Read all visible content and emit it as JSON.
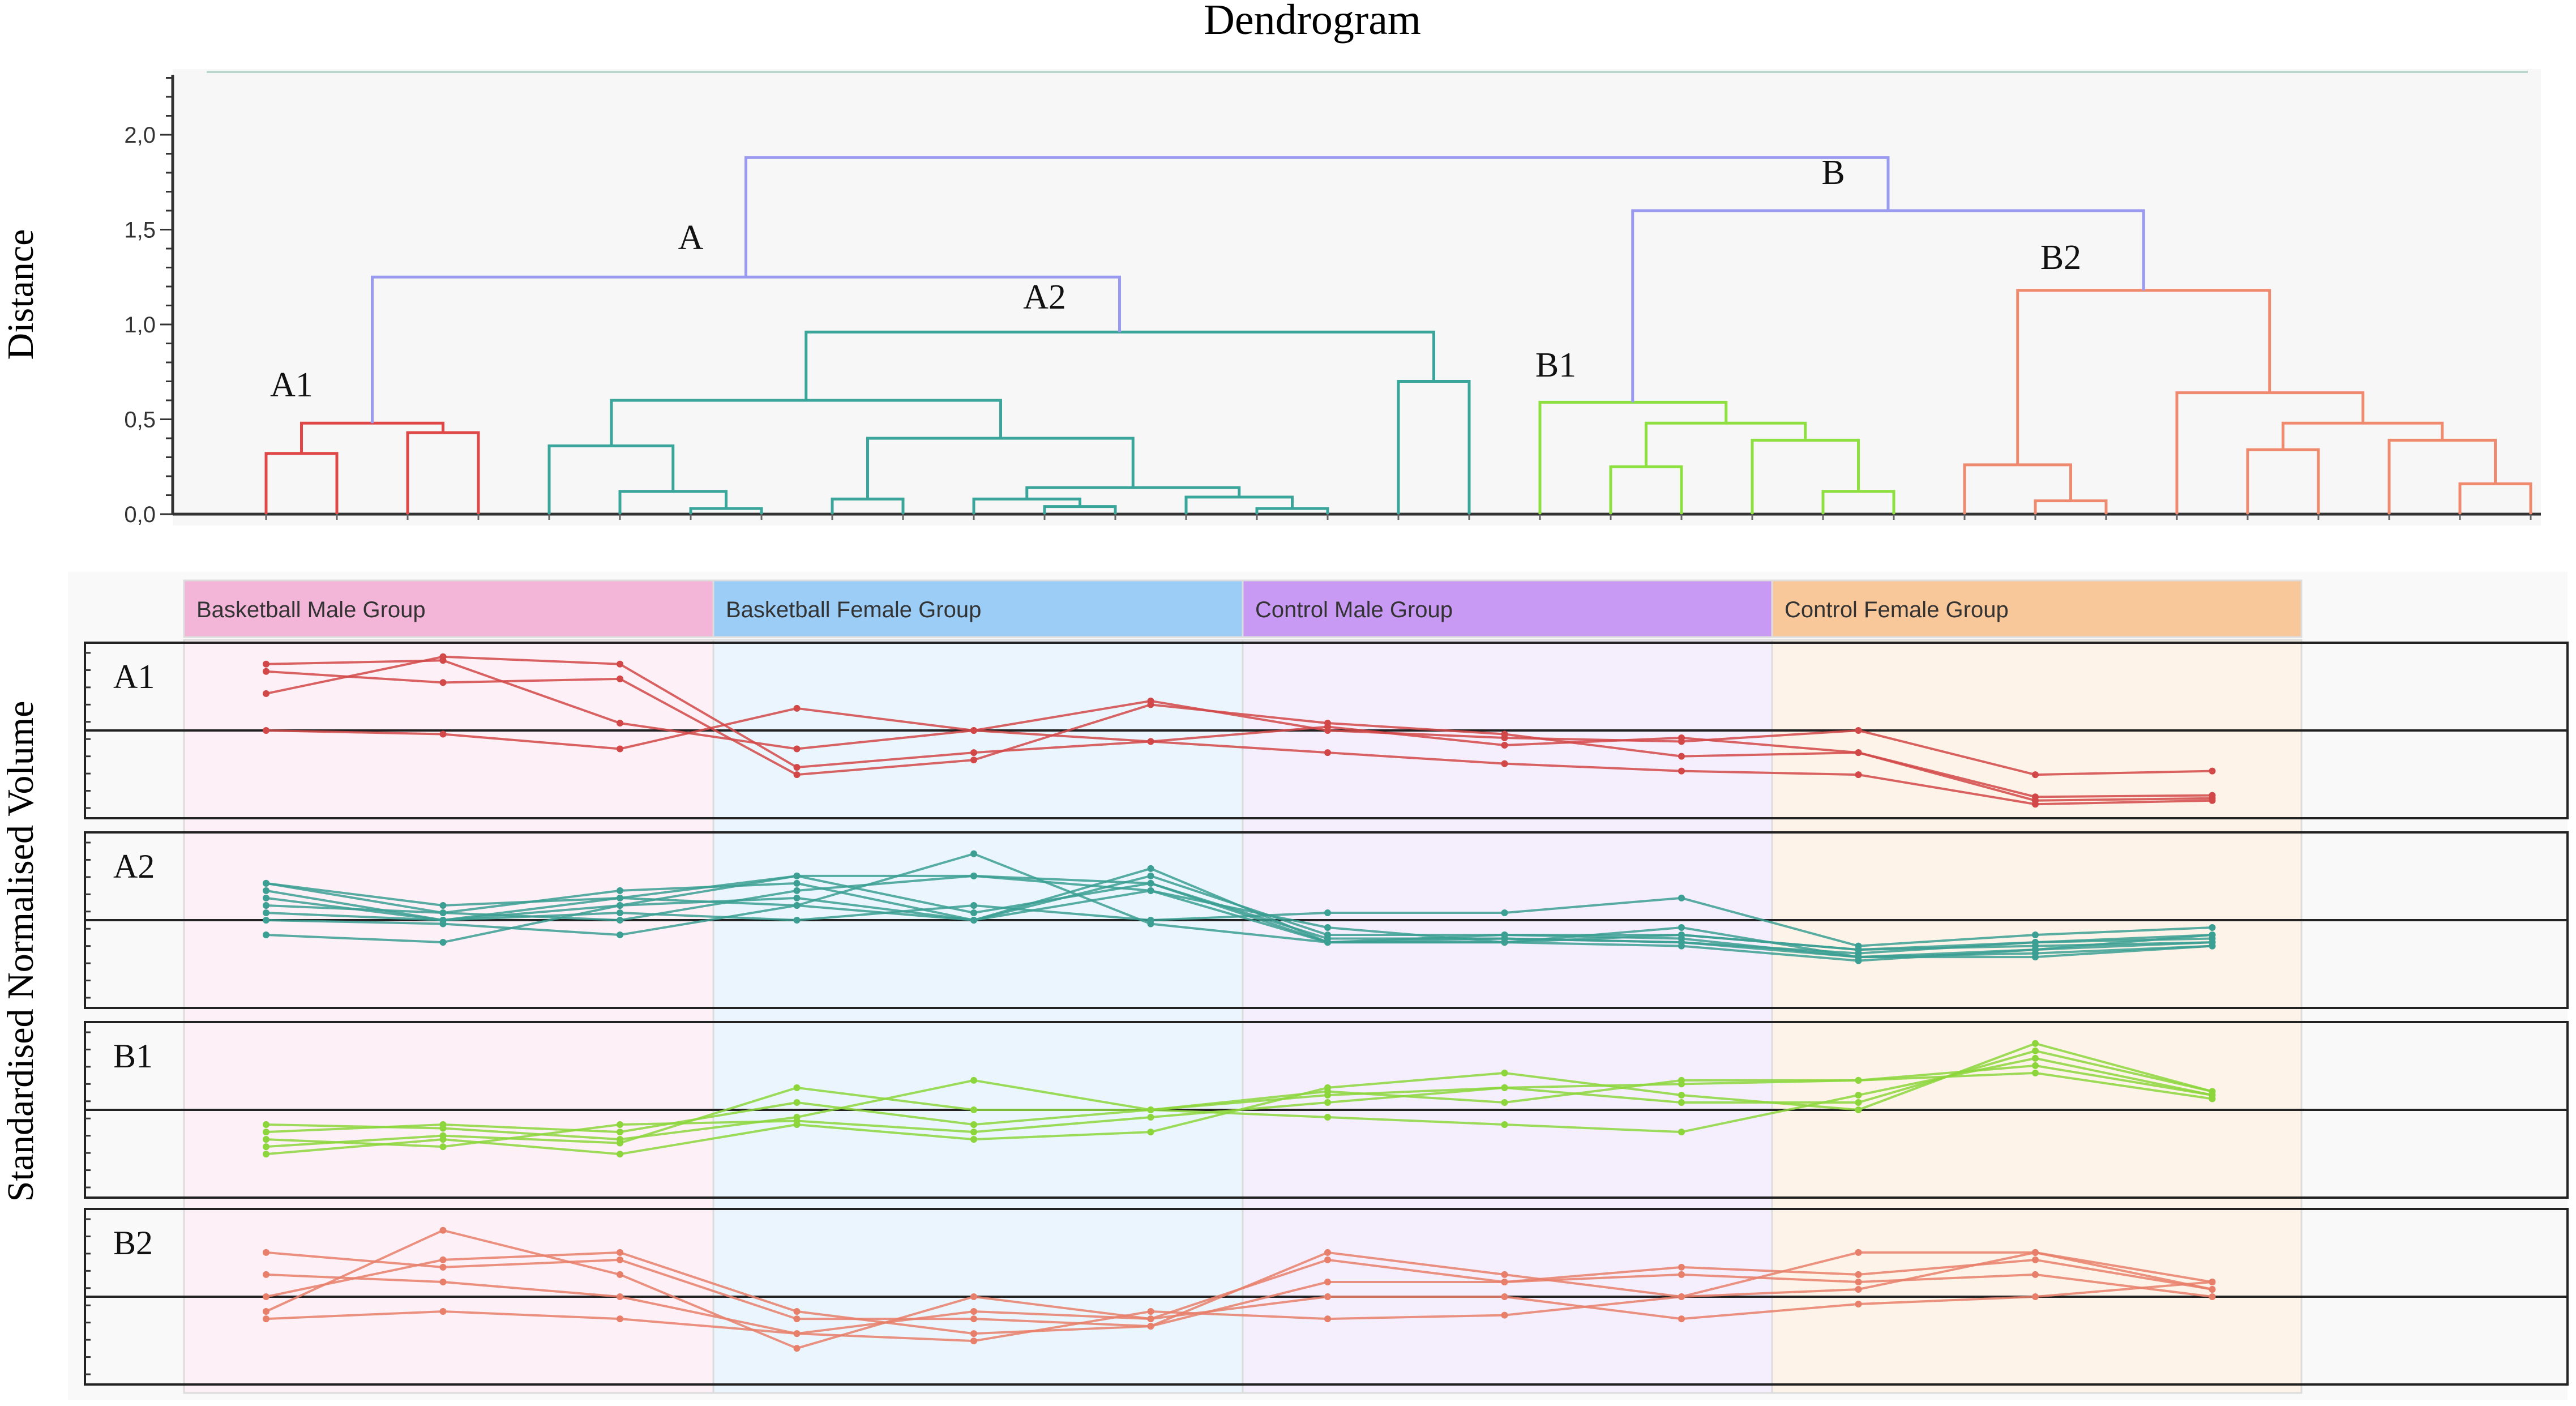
{
  "chart_data": [
    {
      "type": "dendrogram",
      "title": "Dendrogram",
      "ylabel": "Distance",
      "ylim": [
        0,
        2.3
      ],
      "yticks": [
        "0,0",
        "0,5",
        "1,0",
        "1,5",
        "2,0"
      ],
      "grid": false,
      "clusters": [
        {
          "label": "A",
          "height": 1.88,
          "color": "#9a9af0"
        },
        {
          "label": "B",
          "height": 1.88,
          "color": "#9a9af0"
        },
        {
          "label": "A1",
          "height": 1.25,
          "color": "#e04848"
        },
        {
          "label": "A2",
          "height": 1.25,
          "color": "#3aa59a"
        },
        {
          "label": "B1",
          "height": 1.6,
          "color": "#8ee040"
        },
        {
          "label": "B2",
          "height": 1.6,
          "color": "#f08a6e"
        }
      ],
      "links": [
        {
          "cluster": "A1",
          "height": 0.32,
          "children": [
            1,
            2
          ]
        },
        {
          "cluster": "A1",
          "height": 0.43,
          "children": [
            3,
            4
          ]
        },
        {
          "cluster": "A1",
          "height": 0.48,
          "children": [
            1.5,
            3.5
          ]
        },
        {
          "cluster": "A2",
          "height": 0.03,
          "children": [
            7,
            8
          ]
        },
        {
          "cluster": "A2",
          "height": 0.12,
          "children": [
            6,
            7.5
          ]
        },
        {
          "cluster": "A2",
          "height": 0.36,
          "children": [
            5,
            6.75
          ]
        },
        {
          "cluster": "A2",
          "height": 0.08,
          "children": [
            9,
            10
          ]
        },
        {
          "cluster": "A2",
          "height": 0.04,
          "children": [
            12,
            13
          ]
        },
        {
          "cluster": "A2",
          "height": 0.08,
          "children": [
            11,
            12.5
          ]
        },
        {
          "cluster": "A2",
          "height": 0.03,
          "children": [
            15,
            16
          ]
        },
        {
          "cluster": "A2",
          "height": 0.09,
          "children": [
            14,
            15.5
          ]
        },
        {
          "cluster": "A2",
          "height": 0.14,
          "children": [
            11.75,
            14.75
          ]
        },
        {
          "cluster": "A2",
          "height": 0.4,
          "children": [
            9.5,
            13.25
          ]
        },
        {
          "cluster": "A2",
          "height": 0.6,
          "children": [
            5.88,
            11.38
          ]
        },
        {
          "cluster": "A2",
          "height": 0.7,
          "children": [
            17,
            18
          ]
        },
        {
          "cluster": "A2",
          "height": 0.96,
          "children": [
            8.63,
            17.5
          ]
        },
        {
          "cluster": "A",
          "height": 1.25,
          "children": [
            2.5,
            13.06
          ]
        },
        {
          "cluster": "B1",
          "height": 0.25,
          "children": [
            20,
            21
          ]
        },
        {
          "cluster": "B1",
          "height": 0.12,
          "children": [
            23,
            24
          ]
        },
        {
          "cluster": "B1",
          "height": 0.39,
          "children": [
            22,
            23.5
          ]
        },
        {
          "cluster": "B1",
          "height": 0.48,
          "children": [
            20.5,
            22.75
          ]
        },
        {
          "cluster": "B1",
          "height": 0.59,
          "children": [
            19,
            21.63
          ]
        },
        {
          "cluster": "B2",
          "height": 0.07,
          "children": [
            26,
            27
          ]
        },
        {
          "cluster": "B2",
          "height": 0.26,
          "children": [
            25,
            26.5
          ]
        },
        {
          "cluster": "B2",
          "height": 0.34,
          "children": [
            29,
            30
          ]
        },
        {
          "cluster": "B2",
          "height": 0.16,
          "children": [
            32,
            33
          ]
        },
        {
          "cluster": "B2",
          "height": 0.39,
          "children": [
            31,
            32.5
          ]
        },
        {
          "cluster": "B2",
          "height": 0.48,
          "children": [
            29.5,
            31.75
          ]
        },
        {
          "cluster": "B2",
          "height": 0.64,
          "children": [
            28,
            30.63
          ]
        },
        {
          "cluster": "B2",
          "height": 1.18,
          "children": [
            25.75,
            29.31
          ]
        },
        {
          "cluster": "B",
          "height": 1.6,
          "children": [
            20.31,
            27.53
          ]
        },
        {
          "cluster": "root",
          "height": 1.88,
          "children": [
            7.78,
            23.92
          ]
        }
      ],
      "leaves": 33
    },
    {
      "type": "line",
      "ylabel": "Standardised Normalised Volume",
      "ylim": [
        -1,
        1
      ],
      "groups": [
        {
          "label": "Basketball Male Group",
          "header_color": "#f3b5d8",
          "bg_color": "#fdf0f6"
        },
        {
          "label": "Basketball Female Group",
          "header_color": "#9bcdf7",
          "bg_color": "#ebf5fd"
        },
        {
          "label": "Control Male Group",
          "header_color": "#c99af4",
          "bg_color": "#f5eefc"
        },
        {
          "label": "Control Female Group",
          "header_color": "#f8c79a",
          "bg_color": "#fdf3e9"
        }
      ],
      "x": [
        1,
        2,
        3,
        4,
        5,
        6,
        7,
        8,
        9,
        10,
        11,
        12
      ],
      "panels": [
        {
          "label": "A1",
          "color": "#d24848",
          "series": [
            [
              0.9,
              0.95,
              0.1,
              -0.25,
              0.0,
              -0.15,
              -0.3,
              -0.45,
              -0.55,
              -0.6,
              -1.0,
              -0.95
            ],
            [
              0.8,
              0.65,
              0.7,
              -0.6,
              -0.4,
              0.35,
              0.1,
              -0.05,
              -0.35,
              -0.3,
              -0.9,
              -0.88
            ],
            [
              0.5,
              1.0,
              0.9,
              -0.5,
              -0.3,
              -0.15,
              0.05,
              -0.2,
              -0.1,
              -0.3,
              -0.95,
              -0.92
            ],
            [
              0.0,
              -0.05,
              -0.25,
              0.3,
              0.0,
              0.4,
              0.0,
              -0.1,
              -0.15,
              0.0,
              -0.6,
              -0.55
            ]
          ]
        },
        {
          "label": "A2",
          "color": "#3b9f93",
          "series": [
            [
              0.5,
              0.1,
              0.4,
              0.5,
              0.0,
              0.7,
              -0.3,
              -0.2,
              -0.2,
              -0.4,
              -0.3,
              -0.2
            ],
            [
              0.3,
              0.0,
              0.2,
              0.6,
              0.1,
              0.5,
              -0.25,
              -0.25,
              -0.3,
              -0.5,
              -0.4,
              -0.3
            ],
            [
              0.1,
              0.0,
              0.1,
              0.0,
              0.2,
              0.0,
              0.1,
              0.1,
              0.3,
              -0.35,
              -0.2,
              -0.1
            ],
            [
              -0.2,
              -0.3,
              0.2,
              0.3,
              0.0,
              0.4,
              -0.1,
              -0.3,
              -0.1,
              -0.5,
              -0.45,
              -0.35
            ],
            [
              0.4,
              0.0,
              0.3,
              0.2,
              0.9,
              -0.05,
              -0.3,
              -0.25,
              -0.3,
              -0.45,
              -0.3,
              -0.25
            ],
            [
              0.2,
              0.1,
              0.0,
              0.4,
              0.6,
              0.5,
              -0.3,
              -0.3,
              -0.2,
              -0.4,
              -0.35,
              -0.3
            ],
            [
              0.0,
              -0.05,
              -0.2,
              0.2,
              0.0,
              0.6,
              -0.2,
              -0.2,
              -0.25,
              -0.5,
              -0.5,
              -0.35
            ],
            [
              0.5,
              0.2,
              0.3,
              0.6,
              0.6,
              0.4,
              -0.3,
              -0.3,
              -0.35,
              -0.55,
              -0.4,
              -0.2
            ]
          ]
        },
        {
          "label": "B1",
          "color": "#8cd63c",
          "series": [
            [
              -0.3,
              -0.2,
              -0.3,
              0.1,
              -0.2,
              0.0,
              -0.1,
              -0.2,
              -0.3,
              0.2,
              0.7,
              0.2
            ],
            [
              -0.5,
              -0.35,
              -0.45,
              0.3,
              0.0,
              0.0,
              0.2,
              0.3,
              0.1,
              0.1,
              0.8,
              0.25
            ],
            [
              -0.2,
              -0.25,
              -0.4,
              -0.1,
              0.4,
              0.0,
              0.25,
              0.1,
              0.4,
              0.4,
              0.5,
              0.15
            ],
            [
              -0.4,
              -0.5,
              -0.2,
              -0.15,
              -0.3,
              -0.1,
              0.1,
              0.3,
              0.35,
              0.4,
              0.6,
              0.2
            ],
            [
              -0.6,
              -0.4,
              -0.6,
              -0.2,
              -0.4,
              -0.3,
              0.3,
              0.5,
              0.2,
              0.0,
              0.9,
              0.25
            ]
          ]
        },
        {
          "label": "B2",
          "color": "#e87f6a",
          "series": [
            [
              0.6,
              0.4,
              0.5,
              -0.3,
              -0.3,
              -0.4,
              0.6,
              0.3,
              0.0,
              0.6,
              0.6,
              0.2
            ],
            [
              0.3,
              0.2,
              0.0,
              -0.5,
              -0.2,
              -0.3,
              0.5,
              0.2,
              0.4,
              0.3,
              0.5,
              0.1
            ],
            [
              0.0,
              0.5,
              0.6,
              -0.2,
              -0.5,
              -0.4,
              0.2,
              0.2,
              0.3,
              0.2,
              0.3,
              0.0
            ],
            [
              -0.2,
              0.9,
              0.3,
              -0.7,
              0.0,
              -0.3,
              0.0,
              0.0,
              -0.3,
              -0.1,
              0.0,
              0.2
            ],
            [
              -0.3,
              -0.2,
              -0.3,
              -0.5,
              -0.6,
              -0.2,
              -0.3,
              -0.25,
              0.0,
              0.1,
              0.6,
              0.1
            ]
          ]
        }
      ]
    }
  ]
}
